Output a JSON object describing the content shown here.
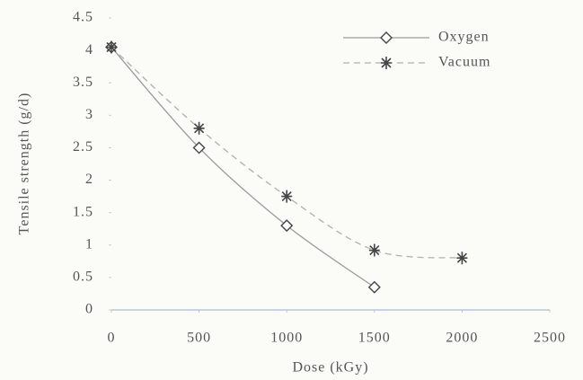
{
  "chart_data": {
    "type": "line",
    "x_label": "Dose (kGy)",
    "y_label": "Tensile strength (g/d)",
    "xlim": [
      0,
      2500
    ],
    "xticks": [
      0,
      500,
      1000,
      1500,
      2000,
      2500
    ],
    "ylim": [
      0,
      4.5
    ],
    "yticks": [
      0,
      0.5,
      1,
      1.5,
      2,
      2.5,
      3,
      3.5,
      4,
      4.5
    ],
    "grid": false,
    "legend": "top-right",
    "series": [
      {
        "name": "Oxygen",
        "color": "#9a9a9a",
        "marker": "diamond",
        "dash": "solid",
        "x": [
          0,
          500,
          1000,
          1500
        ],
        "values": [
          4.05,
          2.5,
          1.3,
          0.35
        ]
      },
      {
        "name": "Vacuum",
        "color": "#b0b0b0",
        "marker": "asterisk",
        "dash": "dashed",
        "x": [
          0,
          500,
          1000,
          1500,
          2000
        ],
        "values": [
          4.05,
          2.8,
          1.75,
          0.92,
          0.8
        ]
      }
    ]
  }
}
